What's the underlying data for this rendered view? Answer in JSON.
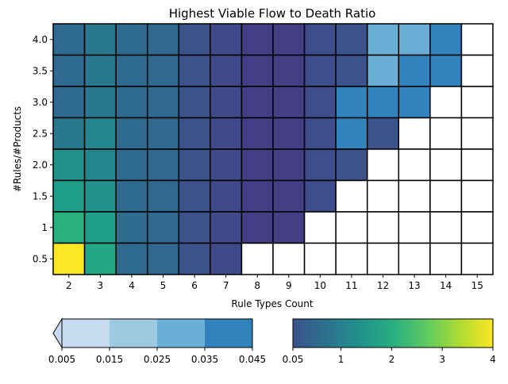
{
  "chart_data": {
    "type": "heatmap",
    "title": "Highest Viable Flow to Death Ratio",
    "xlabel": "Rule Types Count",
    "ylabel": "#Rules/#Products",
    "x_categories": [
      "2",
      "3",
      "4",
      "5",
      "6",
      "7",
      "8",
      "9",
      "10",
      "11",
      "12",
      "13",
      "14",
      "15"
    ],
    "y_categories": [
      "4.0",
      "3.5",
      "3.0",
      "2.5",
      "2.0",
      "1.5",
      "1",
      "0.5"
    ],
    "cell_colors": [
      [
        "#2e6b8e",
        "#2a788e",
        "#2e6b8e",
        "#31688e",
        "#3b528b",
        "#3f4a8a",
        "#433e85",
        "#433e85",
        "#3d4e8a",
        "#3b528b",
        "#6baed6",
        "#6baed6",
        "#3182bd",
        "#ffffff"
      ],
      [
        "#2e6b8e",
        "#2a788e",
        "#2e6b8e",
        "#31688e",
        "#3b528b",
        "#3f4a8a",
        "#433e85",
        "#433e85",
        "#3d4e8a",
        "#3b528b",
        "#6baed6",
        "#3182bd",
        "#3182bd",
        "#ffffff"
      ],
      [
        "#2e6b8e",
        "#2a788e",
        "#2e6b8e",
        "#31688e",
        "#3b528b",
        "#3f4a8a",
        "#433e85",
        "#433e85",
        "#3d4e8a",
        "#3182bd",
        "#3182bd",
        "#3182bd",
        "#ffffff",
        "#ffffff"
      ],
      [
        "#2a788e",
        "#25858e",
        "#2e6b8e",
        "#31688e",
        "#3b528b",
        "#3f4a8a",
        "#433e85",
        "#433e85",
        "#3d4e8a",
        "#3182bd",
        "#3b528b",
        "#ffffff",
        "#ffffff",
        "#ffffff"
      ],
      [
        "#21918c",
        "#25858e",
        "#2e6b8e",
        "#31688e",
        "#3b528b",
        "#3f4a8a",
        "#433e85",
        "#433e85",
        "#3d4e8a",
        "#3b528b",
        "#ffffff",
        "#ffffff",
        "#ffffff",
        "#ffffff"
      ],
      [
        "#1f9e89",
        "#21918c",
        "#2e6b8e",
        "#31688e",
        "#3b528b",
        "#3f4a8a",
        "#433e85",
        "#433e85",
        "#3d4e8a",
        "#ffffff",
        "#ffffff",
        "#ffffff",
        "#ffffff",
        "#ffffff"
      ],
      [
        "#2ab07f",
        "#1f9e89",
        "#2e6b8e",
        "#31688e",
        "#3b528b",
        "#3f4a8a",
        "#433e85",
        "#433e85",
        "#ffffff",
        "#ffffff",
        "#ffffff",
        "#ffffff",
        "#ffffff",
        "#ffffff"
      ],
      [
        "#fde725",
        "#22a884",
        "#2e6b8e",
        "#31688e",
        "#3b528b",
        "#3f4a8a",
        "#ffffff",
        "#ffffff",
        "#ffffff",
        "#ffffff",
        "#ffffff",
        "#ffffff",
        "#ffffff",
        "#ffffff"
      ]
    ],
    "colorbar_low": {
      "ticks": [
        "0.005",
        "0.015",
        "0.025",
        "0.035",
        "0.045"
      ],
      "colors": [
        "#c6dbef",
        "#9ecae1",
        "#6baed6",
        "#3182bd"
      ],
      "extend": "min"
    },
    "colorbar_high": {
      "ticks": [
        "0.05",
        "1",
        "2",
        "3",
        "4"
      ],
      "tick_values": [
        0.05,
        1,
        2,
        3,
        4
      ],
      "range": [
        0.05,
        4
      ],
      "colormap": "viridis",
      "stops": [
        "#3b528b",
        "#2c728e",
        "#21918c",
        "#28ae80",
        "#5ec962",
        "#addc30",
        "#fde725"
      ]
    },
    "grid": false
  }
}
